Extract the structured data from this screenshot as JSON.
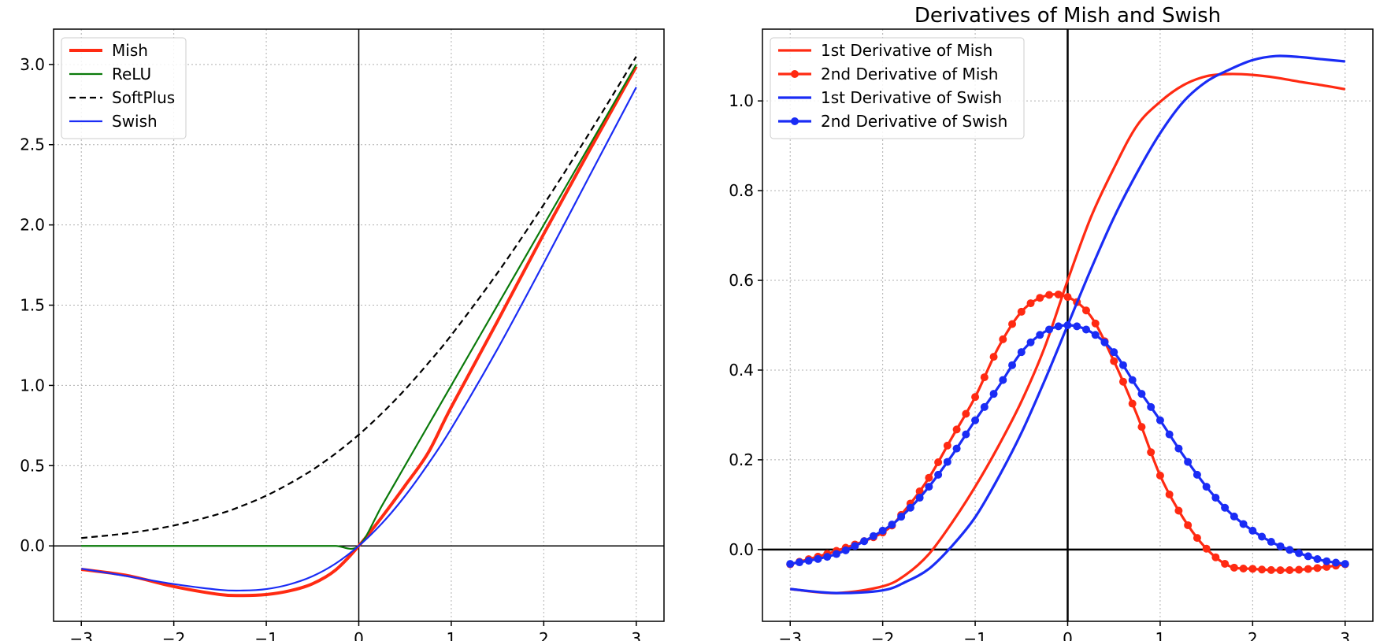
{
  "chart_data": [
    {
      "type": "line",
      "title": "",
      "xlabel": "",
      "ylabel": "",
      "xlim": [
        -3.3,
        3.3
      ],
      "ylim": [
        -0.47,
        3.22
      ],
      "xticks": [
        -3,
        -2,
        -1,
        0,
        1,
        2,
        3
      ],
      "xtick_labels": [
        "−3",
        "−2",
        "−1",
        "0",
        "1",
        "2",
        "3"
      ],
      "yticks": [
        0.0,
        0.5,
        1.0,
        1.5,
        2.0,
        2.5,
        3.0
      ],
      "ytick_labels": [
        "0.0",
        "0.5",
        "1.0",
        "1.5",
        "2.0",
        "2.5",
        "3.0"
      ],
      "grid": true,
      "legend_position": "top-left",
      "zero_lines": true,
      "x": [
        -3.0,
        -2.5,
        -2.0,
        -1.5,
        -1.25,
        -1.0,
        -0.75,
        -0.5,
        -0.25,
        0.0,
        0.25,
        0.5,
        0.75,
        1.0,
        1.5,
        2.0,
        2.5,
        3.0
      ],
      "series": [
        {
          "name": "Mish",
          "color": "#ff2a12",
          "style": "solid",
          "width": "thick",
          "values": [
            -0.146,
            -0.185,
            -0.253,
            -0.303,
            -0.309,
            -0.303,
            -0.28,
            -0.236,
            -0.15,
            0.0,
            0.18,
            0.375,
            0.58,
            0.865,
            1.4,
            1.944,
            2.47,
            2.987
          ]
        },
        {
          "name": "ReLU",
          "color": "#0a7a0a",
          "style": "solid",
          "width": "normal",
          "values": [
            0,
            0,
            0,
            0,
            0,
            0,
            0,
            0,
            0,
            0,
            0.25,
            0.5,
            0.75,
            1.0,
            1.5,
            2.0,
            2.5,
            3.0
          ]
        },
        {
          "name": "SoftPlus",
          "color": "#000000",
          "style": "dashed",
          "width": "normal",
          "values": [
            0.049,
            0.079,
            0.127,
            0.201,
            0.252,
            0.313,
            0.388,
            0.474,
            0.576,
            0.693,
            0.826,
            0.974,
            1.138,
            1.313,
            1.701,
            2.127,
            2.579,
            3.049
          ]
        },
        {
          "name": "Swish",
          "color": "#1a2cf5",
          "style": "solid",
          "width": "normal",
          "values": [
            -0.142,
            -0.189,
            -0.238,
            -0.274,
            -0.278,
            -0.269,
            -0.24,
            -0.189,
            -0.11,
            0.0,
            0.14,
            0.311,
            0.51,
            0.731,
            1.227,
            1.762,
            2.311,
            2.858
          ]
        }
      ]
    },
    {
      "type": "line",
      "title": "Derivatives of Mish and Swish",
      "xlabel": "",
      "ylabel": "",
      "xlim": [
        -3.3,
        3.3
      ],
      "ylim": [
        -0.16,
        1.16
      ],
      "xticks": [
        -3,
        -2,
        -1,
        0,
        1,
        2,
        3
      ],
      "xtick_labels": [
        "−3",
        "−2",
        "−1",
        "0",
        "1",
        "2",
        "3"
      ],
      "yticks": [
        0.0,
        0.2,
        0.4,
        0.6,
        0.8,
        1.0
      ],
      "ytick_labels": [
        "0.0",
        "0.2",
        "0.4",
        "0.6",
        "0.8",
        "1.0"
      ],
      "grid": true,
      "legend_position": "top-left",
      "zero_lines": true,
      "x": [
        -3.0,
        -2.5,
        -2.0,
        -1.75,
        -1.5,
        -1.25,
        -1.0,
        -0.75,
        -0.5,
        -0.25,
        0.0,
        0.25,
        0.5,
        0.75,
        1.0,
        1.25,
        1.5,
        1.75,
        2.0,
        2.25,
        2.5,
        2.75,
        3.0
      ],
      "series": [
        {
          "name": "1st Derivative of Mish",
          "color": "#ff2a12",
          "style": "solid",
          "markers": false,
          "values": [
            -0.088,
            -0.097,
            -0.082,
            -0.056,
            -0.01,
            0.06,
            0.14,
            0.23,
            0.33,
            0.45,
            0.6,
            0.74,
            0.85,
            0.945,
            0.998,
            1.035,
            1.055,
            1.06,
            1.058,
            1.052,
            1.043,
            1.035,
            1.026
          ]
        },
        {
          "name": "2nd Derivative of Mish",
          "color": "#ff2a12",
          "style": "solid",
          "markers": true,
          "values": [
            -0.033,
            -0.003,
            0.038,
            0.09,
            0.16,
            0.25,
            0.34,
            0.45,
            0.53,
            0.565,
            0.563,
            0.52,
            0.42,
            0.3,
            0.165,
            0.07,
            0.002,
            -0.037,
            -0.043,
            -0.046,
            -0.045,
            -0.04,
            -0.033
          ]
        },
        {
          "name": "1st Derivative of Swish",
          "color": "#1a2cf5",
          "style": "solid",
          "markers": false,
          "values": [
            -0.088,
            -0.097,
            -0.091,
            -0.072,
            -0.043,
            0.008,
            0.072,
            0.16,
            0.26,
            0.376,
            0.5,
            0.624,
            0.74,
            0.84,
            0.928,
            0.998,
            1.043,
            1.07,
            1.091,
            1.1,
            1.098,
            1.093,
            1.088
          ]
        },
        {
          "name": "2nd Derivative of Swish",
          "color": "#1a2cf5",
          "style": "solid",
          "markers": true,
          "values": [
            -0.032,
            -0.01,
            0.042,
            0.083,
            0.14,
            0.21,
            0.288,
            0.362,
            0.44,
            0.485,
            0.5,
            0.485,
            0.44,
            0.362,
            0.288,
            0.21,
            0.14,
            0.083,
            0.042,
            0.012,
            -0.008,
            -0.024,
            -0.032
          ]
        }
      ]
    }
  ]
}
